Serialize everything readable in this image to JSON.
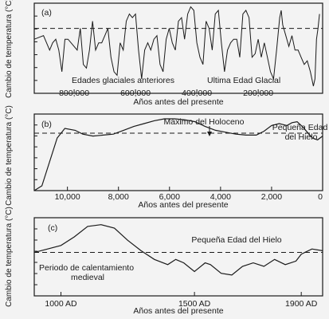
{
  "figure": {
    "ylabel": "Cambio de temperatura (°C)",
    "xlabel": "Años antes del presente"
  },
  "chart_data": [
    {
      "type": "line",
      "panel_label": "(a)",
      "ylabel": "Cambio de temperatura (°C)",
      "xlabel": "Años antes del presente",
      "xlim": [
        930000,
        -10000
      ],
      "ylim": [
        -9,
        3.5
      ],
      "x_ticks": [
        800000,
        600000,
        400000,
        200000
      ],
      "x_tick_labels": [
        "800,000",
        "600,000",
        "400,000",
        "200,000"
      ],
      "reference_line": 0,
      "grid": false,
      "annotations": [
        "Edades glaciales anteriores",
        "Ultima Edad Glacial"
      ],
      "series": [
        {
          "x": [
            930000,
            900000,
            880000,
            870000,
            860000,
            850000,
            840000,
            830000,
            820000,
            810000,
            790000,
            780000,
            770000,
            760000,
            750000,
            740000,
            730000,
            720000,
            710000,
            700000,
            690000,
            680000,
            670000,
            660000,
            650000,
            640000,
            630000,
            620000,
            610000,
            600000,
            590000,
            580000,
            570000,
            560000,
            550000,
            540000,
            530000,
            520000,
            510000,
            500000,
            490000,
            480000,
            470000,
            460000,
            450000,
            440000,
            430000,
            420000,
            410000,
            400000,
            390000,
            380000,
            370000,
            360000,
            350000,
            340000,
            330000,
            320000,
            310000,
            300000,
            290000,
            280000,
            270000,
            260000,
            250000,
            240000,
            230000,
            220000,
            210000,
            200000,
            190000,
            180000,
            170000,
            160000,
            150000,
            140000,
            130000,
            125000,
            120000,
            110000,
            100000,
            90000,
            80000,
            70000,
            60000,
            50000,
            40000,
            30000,
            20000,
            15000,
            10000,
            5000,
            0
          ],
          "values": [
            -1.5,
            -1,
            -3,
            -2,
            -1.5,
            -3,
            -6,
            -1.5,
            -1.5,
            -2,
            -3,
            0,
            -5,
            -5.5,
            -3,
            1,
            -3,
            -2,
            -2,
            -1,
            0,
            -4,
            -6,
            -6.5,
            -2,
            -3,
            1,
            2,
            1.5,
            2,
            -3,
            -7,
            -3,
            -2,
            -3,
            -1.5,
            -1,
            -5,
            -6,
            -1.5,
            0,
            -2,
            -3,
            1,
            1.5,
            -1.5,
            2,
            3,
            2.5,
            -2,
            -4,
            -5,
            1,
            0,
            -3,
            2,
            2.5,
            -2,
            -6,
            -3,
            -2,
            -1.5,
            -1.5,
            -4,
            2,
            2.5,
            1.5,
            -4,
            -3.5,
            -1.5,
            -4,
            -2,
            -4,
            -6,
            -7,
            -3,
            1.5,
            2.5,
            0.5,
            -1,
            -2.5,
            -1,
            -3,
            -3,
            -4,
            -5,
            -4.5,
            -6,
            -8,
            -7,
            -1.5,
            0,
            2
          ]
        }
      ]
    },
    {
      "type": "line",
      "panel_label": "(b)",
      "ylabel": "Cambio de temperatura (°C)",
      "xlabel": "Años antes del presente",
      "xlim": [
        11300,
        0
      ],
      "ylim": [
        -6,
        2
      ],
      "x_ticks": [
        10000,
        8000,
        6000,
        4000,
        2000,
        0
      ],
      "x_tick_labels": [
        "10,000",
        "8,000",
        "6,000",
        "4,000",
        "2,000",
        "0"
      ],
      "reference_line": 0,
      "grid": false,
      "annotations": [
        "Máximo del Holoceno",
        "Pequeña Edad del Hielo"
      ],
      "series": [
        {
          "x": [
            11300,
            11000,
            10700,
            10400,
            10100,
            9700,
            9400,
            9000,
            8600,
            8200,
            7800,
            7400,
            7000,
            6600,
            6200,
            5800,
            5400,
            5000,
            4600,
            4200,
            3800,
            3400,
            3000,
            2600,
            2300,
            2000,
            1700,
            1400,
            1200,
            1000,
            800,
            600,
            400,
            200,
            0
          ],
          "values": [
            -6,
            -5.5,
            -3,
            -0.5,
            0.5,
            0.3,
            -0.1,
            -0.3,
            -0.2,
            -0.1,
            0.3,
            0.7,
            1,
            1.3,
            1.5,
            1.5,
            1.4,
            1.2,
            0.7,
            0.3,
            0.1,
            -0.1,
            -0.2,
            -0.2,
            0.2,
            0.8,
            1,
            0.8,
            1.1,
            1.2,
            0.7,
            0.1,
            -0.5,
            -0.7,
            -0.3
          ]
        }
      ]
    },
    {
      "type": "line",
      "panel_label": "(c)",
      "ylabel": "Cambio de temperatura (°C)",
      "xlabel": "Años antes del presente",
      "xlim": [
        900,
        1980
      ],
      "ylim": [
        -2.5,
        2
      ],
      "x_ticks": [
        1000,
        1500,
        1900
      ],
      "x_tick_labels": [
        "1000 AD",
        "1500 AD",
        "1900 AD"
      ],
      "reference_line": 0,
      "grid": false,
      "annotations": [
        "Pequeña Edad del Hielo",
        "Periodo de calentamiento medieval"
      ],
      "series": [
        {
          "x": [
            900,
            950,
            1000,
            1050,
            1100,
            1150,
            1200,
            1250,
            1300,
            1350,
            1400,
            1430,
            1460,
            1500,
            1540,
            1560,
            1600,
            1640,
            1680,
            1720,
            1760,
            1800,
            1840,
            1880,
            1900,
            1940,
            1980
          ],
          "values": [
            0,
            0.2,
            0.4,
            0.9,
            1.5,
            1.6,
            1.4,
            0.7,
            0.1,
            -0.4,
            -0.7,
            -0.4,
            -0.6,
            -1.1,
            -0.6,
            -0.7,
            -1.2,
            -1.3,
            -0.8,
            -0.6,
            -0.8,
            -0.4,
            -0.7,
            -0.5,
            -0.1,
            0.2,
            0.1
          ]
        }
      ]
    }
  ]
}
